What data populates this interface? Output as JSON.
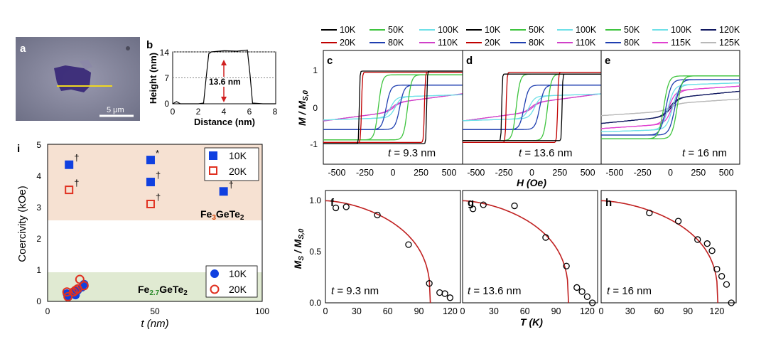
{
  "panels": {
    "a": {
      "label": "a",
      "scale": "5 μm"
    },
    "b": {
      "label": "b",
      "xlabel": "Distance (nm)",
      "ylabel": "Height (nm)",
      "annotation": "13.6 nm",
      "xticks": [
        "0",
        "2",
        "4",
        "6",
        "8"
      ],
      "yticks": [
        "0",
        "7",
        "14"
      ]
    },
    "c": {
      "label": "c",
      "thickness": "9.3 nm"
    },
    "d": {
      "label": "d",
      "thickness": "13.6 nm"
    },
    "e": {
      "label": "e",
      "thickness": "16 nm"
    },
    "f": {
      "label": "f",
      "thickness": "9.3 nm"
    },
    "g": {
      "label": "g",
      "thickness": "13.6 nm"
    },
    "h": {
      "label": "h",
      "thickness": "16 nm"
    },
    "i": {
      "label": "i",
      "ylabel": "Coercivity (kOe)",
      "xlabel": "t (nm)",
      "top_material": "Fe3GeTe2",
      "bottom_material": "Fe2.7GeTe2",
      "xticks": [
        "0",
        "50",
        "100"
      ],
      "yticks": [
        "0",
        "1",
        "2",
        "3",
        "4",
        "5"
      ],
      "dagger": "†",
      "star": "*"
    }
  },
  "colors": {
    "10K": "#000000",
    "20K": "#c00000",
    "50K": "#3fc43f",
    "80K": "#1f3fb0",
    "100K": "#6fe0e8",
    "110K": "#d040c8",
    "115K": "#e040d0",
    "120K": "#101860",
    "125K": "#b8b8b8",
    "fit": "#c02020",
    "blue_marker": "#1040e0",
    "red_marker": "#e03020"
  },
  "hysteresis_common": {
    "ylabel": "M / MS,0",
    "xlabel": "H (Oe)",
    "xticks": [
      "-500",
      "-250",
      "0",
      "250",
      "500"
    ],
    "yticks": [
      "-1",
      "0",
      "1"
    ]
  },
  "legends": {
    "c": [
      [
        "10K",
        "50K",
        "100K"
      ],
      [
        "20K",
        "80K",
        "110K"
      ]
    ],
    "d": [
      [
        "10K",
        "50K",
        "100K"
      ],
      [
        "20K",
        "80K",
        "110K"
      ]
    ],
    "e": [
      [
        "50K",
        "100K",
        "120K"
      ],
      [
        "80K",
        "115K",
        "125K"
      ]
    ]
  },
  "ms_common": {
    "ylabel": "MS / MS,0",
    "xlabel": "T (K)",
    "yticks": [
      "0.0",
      "0.5",
      "1.0"
    ]
  },
  "chart_data": [
    {
      "type": "line",
      "panel": "b",
      "xlabel": "Distance (nm)",
      "ylabel": "Height (nm)",
      "xlim": [
        0,
        8
      ],
      "ylim": [
        0,
        14
      ],
      "x": [
        0,
        0.3,
        0.6,
        1,
        1.5,
        2,
        2.4,
        2.6,
        2.8,
        3,
        4,
        5,
        5.8,
        6.0,
        6.2,
        7,
        8
      ],
      "y": [
        0,
        0.6,
        0,
        0,
        0,
        0,
        0.2,
        7,
        13.5,
        14,
        14.3,
        14.2,
        14.5,
        8,
        0.2,
        0,
        0
      ]
    },
    {
      "type": "scatter",
      "panel": "f",
      "xlabel": "T (K)",
      "ylabel": "MS / MS,0",
      "xlim": [
        0,
        130
      ],
      "ylim": [
        0,
        1.1
      ],
      "x": [
        10,
        20,
        50,
        80,
        100,
        110,
        115,
        120
      ],
      "y": [
        0.93,
        0.94,
        0.86,
        0.57,
        0.19,
        0.1,
        0.09,
        0.05
      ]
    },
    {
      "type": "scatter",
      "panel": "g",
      "xlabel": "T (K)",
      "ylabel": "MS / MS,0",
      "xlim": [
        0,
        130
      ],
      "ylim": [
        0,
        1.1
      ],
      "x": [
        10,
        20,
        50,
        80,
        100,
        110,
        115,
        120,
        125
      ],
      "y": [
        0.92,
        0.96,
        0.95,
        0.64,
        0.36,
        0.15,
        0.11,
        0.06,
        0.0
      ]
    },
    {
      "type": "scatter",
      "panel": "h",
      "xlabel": "T (K)",
      "ylabel": "MS / MS,0",
      "xlim": [
        0,
        140
      ],
      "ylim": [
        0,
        1.1
      ],
      "x": [
        50,
        80,
        100,
        110,
        115,
        120,
        125,
        130,
        135
      ],
      "y": [
        0.88,
        0.8,
        0.62,
        0.58,
        0.51,
        0.33,
        0.26,
        0.18,
        0.0
      ]
    },
    {
      "type": "scatter",
      "panel": "i",
      "xlabel": "t (nm)",
      "ylabel": "Coercivity (kOe)",
      "xlim": [
        0,
        100
      ],
      "ylim": [
        0,
        5
      ],
      "series": [
        {
          "name": "10K",
          "x": [
            10,
            48,
            48,
            82
          ],
          "y": [
            4.35,
            4.5,
            3.8,
            3.5
          ]
        },
        {
          "name": "20K",
          "x": [
            10,
            48
          ],
          "y": [
            3.55,
            3.1
          ]
        },
        {
          "name": "10K",
          "x": [
            9,
            9.5,
            12,
            13,
            14,
            16,
            17
          ],
          "y": [
            0.25,
            0.15,
            0.3,
            0.2,
            0.35,
            0.45,
            0.55
          ]
        },
        {
          "name": "20K",
          "x": [
            9,
            9.5,
            12,
            13,
            14,
            15,
            17
          ],
          "y": [
            0.3,
            0.15,
            0.3,
            0.35,
            0.4,
            0.7,
            0.5
          ]
        }
      ]
    }
  ]
}
